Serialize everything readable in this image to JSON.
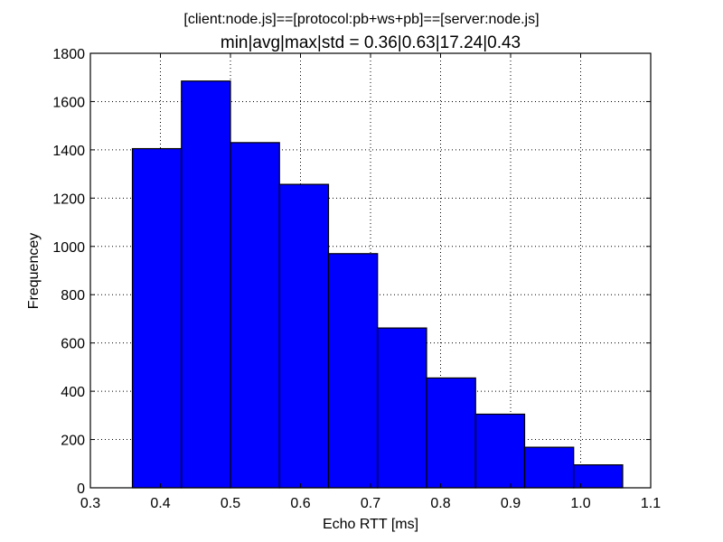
{
  "chart_data": {
    "type": "bar",
    "suptitle": "[client:node.js]==[protocol:pb+ws+pb]==[server:node.js]",
    "title": "min|avg|max|std = 0.36|0.63|17.24|0.43",
    "xlabel": "Echo RTT [ms]",
    "ylabel": "Frequencey",
    "xlim": [
      0.3,
      1.1
    ],
    "ylim": [
      0,
      1800
    ],
    "xticks": [
      "0.3",
      "0.4",
      "0.5",
      "0.6",
      "0.7",
      "0.8",
      "0.9",
      "1.0",
      "1.1"
    ],
    "yticks": [
      "0",
      "200",
      "400",
      "600",
      "800",
      "1000",
      "1200",
      "1400",
      "1600",
      "1800"
    ],
    "bin_edges": [
      0.36,
      0.43,
      0.5,
      0.57,
      0.64,
      0.71,
      0.78,
      0.85,
      0.92,
      0.99,
      1.06
    ],
    "values": [
      1405,
      1685,
      1430,
      1257,
      970,
      662,
      455,
      305,
      168,
      95
    ],
    "bar_color": "#0000ff",
    "grid": true
  }
}
